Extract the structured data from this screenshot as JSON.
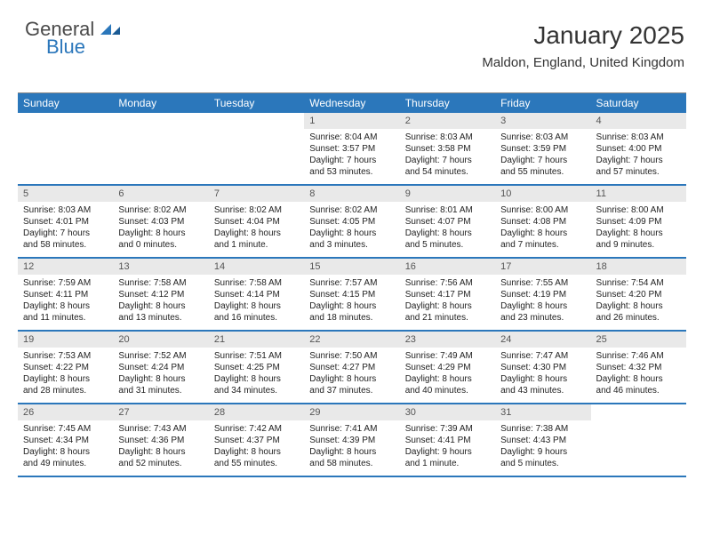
{
  "logo": {
    "text1": "General",
    "text2": "Blue",
    "color1": "#4a4a4a",
    "color2": "#2b77bb"
  },
  "header": {
    "title": "January 2025",
    "location": "Maldon, England, United Kingdom"
  },
  "colors": {
    "header_bg": "#2b77bb",
    "header_text": "#ffffff",
    "daynum_bg": "#e9e9e9",
    "border": "#2b77bb"
  },
  "dayNames": [
    "Sunday",
    "Monday",
    "Tuesday",
    "Wednesday",
    "Thursday",
    "Friday",
    "Saturday"
  ],
  "weeks": [
    [
      null,
      null,
      null,
      {
        "n": "1",
        "sr": "8:04 AM",
        "ss": "3:57 PM",
        "dl": "7 hours and 53 minutes."
      },
      {
        "n": "2",
        "sr": "8:03 AM",
        "ss": "3:58 PM",
        "dl": "7 hours and 54 minutes."
      },
      {
        "n": "3",
        "sr": "8:03 AM",
        "ss": "3:59 PM",
        "dl": "7 hours and 55 minutes."
      },
      {
        "n": "4",
        "sr": "8:03 AM",
        "ss": "4:00 PM",
        "dl": "7 hours and 57 minutes."
      }
    ],
    [
      {
        "n": "5",
        "sr": "8:03 AM",
        "ss": "4:01 PM",
        "dl": "7 hours and 58 minutes."
      },
      {
        "n": "6",
        "sr": "8:02 AM",
        "ss": "4:03 PM",
        "dl": "8 hours and 0 minutes."
      },
      {
        "n": "7",
        "sr": "8:02 AM",
        "ss": "4:04 PM",
        "dl": "8 hours and 1 minute."
      },
      {
        "n": "8",
        "sr": "8:02 AM",
        "ss": "4:05 PM",
        "dl": "8 hours and 3 minutes."
      },
      {
        "n": "9",
        "sr": "8:01 AM",
        "ss": "4:07 PM",
        "dl": "8 hours and 5 minutes."
      },
      {
        "n": "10",
        "sr": "8:00 AM",
        "ss": "4:08 PM",
        "dl": "8 hours and 7 minutes."
      },
      {
        "n": "11",
        "sr": "8:00 AM",
        "ss": "4:09 PM",
        "dl": "8 hours and 9 minutes."
      }
    ],
    [
      {
        "n": "12",
        "sr": "7:59 AM",
        "ss": "4:11 PM",
        "dl": "8 hours and 11 minutes."
      },
      {
        "n": "13",
        "sr": "7:58 AM",
        "ss": "4:12 PM",
        "dl": "8 hours and 13 minutes."
      },
      {
        "n": "14",
        "sr": "7:58 AM",
        "ss": "4:14 PM",
        "dl": "8 hours and 16 minutes."
      },
      {
        "n": "15",
        "sr": "7:57 AM",
        "ss": "4:15 PM",
        "dl": "8 hours and 18 minutes."
      },
      {
        "n": "16",
        "sr": "7:56 AM",
        "ss": "4:17 PM",
        "dl": "8 hours and 21 minutes."
      },
      {
        "n": "17",
        "sr": "7:55 AM",
        "ss": "4:19 PM",
        "dl": "8 hours and 23 minutes."
      },
      {
        "n": "18",
        "sr": "7:54 AM",
        "ss": "4:20 PM",
        "dl": "8 hours and 26 minutes."
      }
    ],
    [
      {
        "n": "19",
        "sr": "7:53 AM",
        "ss": "4:22 PM",
        "dl": "8 hours and 28 minutes."
      },
      {
        "n": "20",
        "sr": "7:52 AM",
        "ss": "4:24 PM",
        "dl": "8 hours and 31 minutes."
      },
      {
        "n": "21",
        "sr": "7:51 AM",
        "ss": "4:25 PM",
        "dl": "8 hours and 34 minutes."
      },
      {
        "n": "22",
        "sr": "7:50 AM",
        "ss": "4:27 PM",
        "dl": "8 hours and 37 minutes."
      },
      {
        "n": "23",
        "sr": "7:49 AM",
        "ss": "4:29 PM",
        "dl": "8 hours and 40 minutes."
      },
      {
        "n": "24",
        "sr": "7:47 AM",
        "ss": "4:30 PM",
        "dl": "8 hours and 43 minutes."
      },
      {
        "n": "25",
        "sr": "7:46 AM",
        "ss": "4:32 PM",
        "dl": "8 hours and 46 minutes."
      }
    ],
    [
      {
        "n": "26",
        "sr": "7:45 AM",
        "ss": "4:34 PM",
        "dl": "8 hours and 49 minutes."
      },
      {
        "n": "27",
        "sr": "7:43 AM",
        "ss": "4:36 PM",
        "dl": "8 hours and 52 minutes."
      },
      {
        "n": "28",
        "sr": "7:42 AM",
        "ss": "4:37 PM",
        "dl": "8 hours and 55 minutes."
      },
      {
        "n": "29",
        "sr": "7:41 AM",
        "ss": "4:39 PM",
        "dl": "8 hours and 58 minutes."
      },
      {
        "n": "30",
        "sr": "7:39 AM",
        "ss": "4:41 PM",
        "dl": "9 hours and 1 minute."
      },
      {
        "n": "31",
        "sr": "7:38 AM",
        "ss": "4:43 PM",
        "dl": "9 hours and 5 minutes."
      },
      null
    ]
  ],
  "labels": {
    "sunrise": "Sunrise:",
    "sunset": "Sunset:",
    "daylight": "Daylight:"
  }
}
